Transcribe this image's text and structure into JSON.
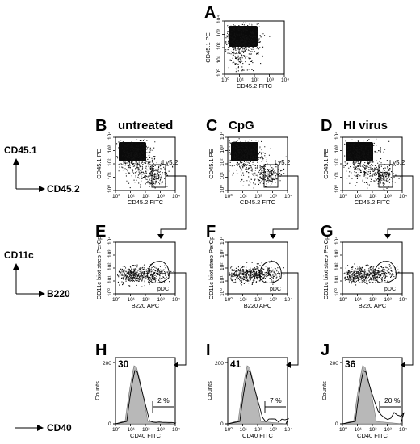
{
  "panels": {
    "A": {
      "letter": "A",
      "ylabel": "CD45.1 PE",
      "xlabel": "CD45.2 FITC"
    },
    "B": {
      "letter": "B",
      "title": "untreated",
      "ylabel": "CD45.1 PE",
      "xlabel": "CD45.2 FITC",
      "gate": "Ly5.2"
    },
    "C": {
      "letter": "C",
      "title": "CpG",
      "ylabel": "CD45.1 PE",
      "xlabel": "CD45.2 FITC",
      "gate": "Ly5.2"
    },
    "D": {
      "letter": "D",
      "title": "HI virus",
      "ylabel": "CD45.1 PE",
      "xlabel": "CD45.2 FITC",
      "gate": "Ly5.2"
    },
    "E": {
      "letter": "E",
      "ylabel": "CD11c biot strep PerCp",
      "xlabel": "B220 APC",
      "gate": "pDC"
    },
    "F": {
      "letter": "F",
      "ylabel": "CD11c biot strep PerCp",
      "xlabel": "B220 APC",
      "gate": "pDC"
    },
    "G": {
      "letter": "G",
      "ylabel": "CD11c biot strep PerCp",
      "xlabel": "B220 APC",
      "gate": "pDC"
    },
    "H": {
      "letter": "H",
      "mfi": "30",
      "pct": "2 %",
      "ylabel": "Counts",
      "xlabel": "CD40 FITC"
    },
    "I": {
      "letter": "I",
      "mfi": "41",
      "pct": "7 %",
      "ylabel": "Counts",
      "xlabel": "CD40 FITC"
    },
    "J": {
      "letter": "J",
      "mfi": "36",
      "pct": "20 %",
      "ylabel": "Counts",
      "xlabel": "CD40 FITC"
    }
  },
  "ticks": {
    "log": [
      "10⁰",
      "10¹",
      "10²",
      "10³",
      "10⁴"
    ],
    "counts": [
      "0",
      "200"
    ]
  },
  "legend": {
    "row1_y": "CD45.1",
    "row1_x": "CD45.2",
    "row2_y": "CD11c",
    "row2_x": "B220",
    "row3_x": "CD40"
  }
}
